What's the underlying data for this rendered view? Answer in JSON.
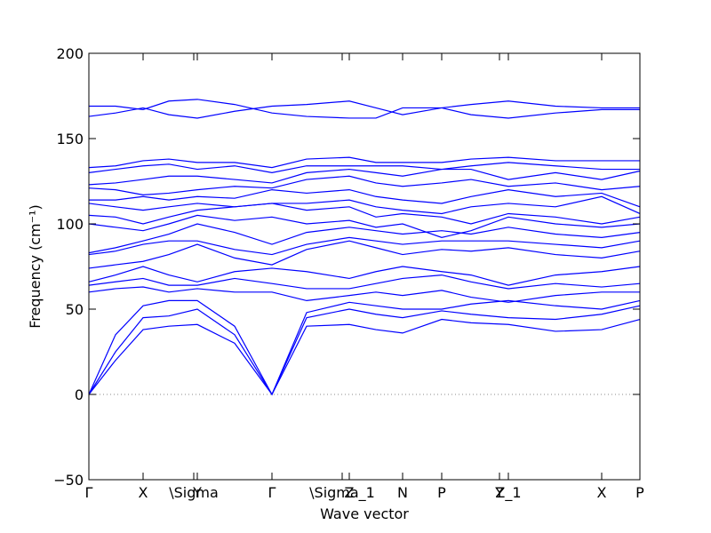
{
  "chart_data": {
    "type": "line",
    "xlabel": "Wave vector",
    "ylabel": "Frequency (cm⁻¹)",
    "color": "#0000ff",
    "zero_line": true,
    "xlim": [
      0,
      6.2
    ],
    "xticks": [
      {
        "value": 0,
        "label": "Γ"
      },
      {
        "value": 0.61,
        "label": "X"
      },
      {
        "value": 1.18,
        "label": "\\Sigma"
      },
      {
        "value": 1.22,
        "label": "Y"
      },
      {
        "value": 2.06,
        "label": "Γ"
      },
      {
        "value": 2.85,
        "label": "\\Sigma_1"
      },
      {
        "value": 2.93,
        "label": "Z"
      },
      {
        "value": 3.53,
        "label": "N"
      },
      {
        "value": 3.97,
        "label": "P"
      },
      {
        "value": 4.62,
        "label": "Y"
      },
      {
        "value": 4.72,
        "label": "Z_1"
      },
      {
        "value": 5.77,
        "label": "X"
      },
      {
        "value": 6.2,
        "label": "P"
      }
    ],
    "ylim": [
      -50,
      200
    ],
    "yticks": [
      {
        "value": -50,
        "label": "−50"
      },
      0,
      50,
      100,
      150,
      200
    ],
    "x": [
      0,
      0.3,
      0.61,
      0.9,
      1.22,
      1.64,
      2.06,
      2.45,
      2.93,
      3.23,
      3.53,
      3.97,
      4.3,
      4.72,
      5.25,
      5.77,
      6.2
    ],
    "series": [
      {
        "values": [
          0,
          20,
          38,
          40,
          41,
          30,
          0,
          40,
          41,
          38,
          36,
          44,
          42,
          41,
          37,
          38,
          44
        ]
      },
      {
        "values": [
          0,
          25,
          45,
          46,
          50,
          35,
          0,
          45,
          50,
          47,
          45,
          49,
          47,
          45,
          44,
          47,
          52
        ]
      },
      {
        "values": [
          0,
          35,
          52,
          55,
          55,
          40,
          0,
          48,
          54,
          52,
          50,
          50,
          53,
          55,
          52,
          50,
          55
        ]
      },
      {
        "values": [
          60,
          62,
          63,
          60,
          62,
          60,
          60,
          55,
          58,
          60,
          58,
          61,
          57,
          54,
          58,
          60,
          60
        ]
      },
      {
        "values": [
          64,
          66,
          68,
          64,
          64,
          68,
          65,
          62,
          62,
          65,
          68,
          70,
          66,
          62,
          65,
          63,
          65
        ]
      },
      {
        "values": [
          66,
          70,
          75,
          70,
          66,
          72,
          74,
          72,
          68,
          72,
          75,
          72,
          70,
          64,
          70,
          72,
          75
        ]
      },
      {
        "values": [
          74,
          76,
          78,
          82,
          88,
          80,
          76,
          85,
          90,
          86,
          82,
          85,
          84,
          86,
          82,
          80,
          84
        ]
      },
      {
        "values": [
          82,
          84,
          88,
          90,
          90,
          85,
          82,
          88,
          92,
          90,
          88,
          90,
          90,
          90,
          88,
          86,
          90
        ]
      },
      {
        "values": [
          83,
          86,
          90,
          94,
          100,
          95,
          88,
          95,
          98,
          96,
          94,
          96,
          94,
          98,
          94,
          92,
          95
        ]
      },
      {
        "values": [
          100,
          98,
          96,
          100,
          105,
          102,
          104,
          100,
          102,
          98,
          100,
          92,
          96,
          104,
          100,
          98,
          100
        ]
      },
      {
        "values": [
          105,
          104,
          100,
          104,
          108,
          110,
          112,
          108,
          110,
          104,
          106,
          104,
          100,
          106,
          104,
          100,
          104
        ]
      },
      {
        "values": [
          112,
          110,
          108,
          110,
          112,
          110,
          112,
          112,
          114,
          110,
          108,
          106,
          110,
          112,
          110,
          116,
          106
        ]
      },
      {
        "values": [
          114,
          114,
          116,
          114,
          116,
          115,
          120,
          118,
          120,
          116,
          114,
          112,
          116,
          120,
          116,
          118,
          110
        ]
      },
      {
        "values": [
          121,
          120,
          117,
          118,
          120,
          122,
          121,
          126,
          128,
          124,
          122,
          124,
          126,
          122,
          124,
          120,
          122
        ]
      },
      {
        "values": [
          123,
          124,
          126,
          128,
          128,
          126,
          124,
          130,
          132,
          130,
          128,
          132,
          132,
          126,
          130,
          126,
          131
        ]
      },
      {
        "values": [
          130,
          132,
          134,
          135,
          132,
          134,
          130,
          134,
          134,
          134,
          134,
          132,
          134,
          136,
          134,
          132,
          132
        ]
      },
      {
        "values": [
          133,
          134,
          137,
          138,
          136,
          136,
          133,
          138,
          139,
          136,
          136,
          136,
          138,
          139,
          137,
          137,
          137
        ]
      },
      {
        "values": [
          163,
          165,
          168,
          164,
          162,
          166,
          169,
          170,
          172,
          168,
          164,
          168,
          170,
          172,
          169,
          168,
          168
        ]
      },
      {
        "values": [
          169,
          169,
          167,
          172,
          173,
          170,
          165,
          163,
          162,
          162,
          168,
          168,
          164,
          162,
          165,
          167,
          167
        ]
      }
    ]
  }
}
